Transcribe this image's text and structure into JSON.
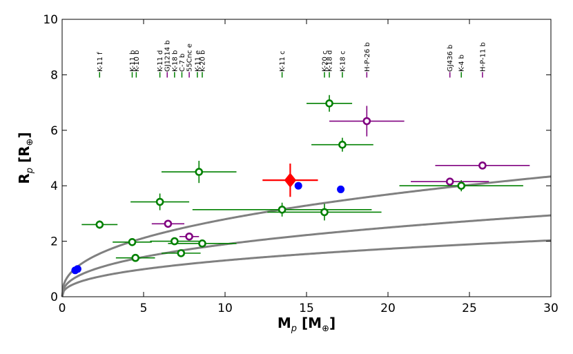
{
  "chart_data": {
    "type": "scatter",
    "title": "",
    "xlabel": {
      "main": "M",
      "sub": "p",
      "unit": " [M",
      "unit_sub": "⊕",
      "close": "]"
    },
    "ylabel": {
      "main": "R",
      "sub": "p",
      "unit": " [R",
      "unit_sub": "⊕",
      "close": "]"
    },
    "xlim": [
      0,
      30
    ],
    "ylim": [
      0,
      10
    ],
    "xticks": [
      0,
      5,
      10,
      15,
      20,
      25,
      30
    ],
    "yticks": [
      0,
      2,
      4,
      6,
      8,
      10
    ],
    "grid": false,
    "colors": {
      "green": "#008000",
      "purple": "#800080",
      "blue": "#0000ff",
      "red": "#ff0000",
      "gray": "#808080"
    },
    "series": [
      {
        "name": "green",
        "marker": "open-circle",
        "points": [
          {
            "x": 2.3,
            "y": 2.6,
            "xerr": 1.1,
            "yerr": 0.15
          },
          {
            "x": 4.3,
            "y": 1.97,
            "xerr": 1.2,
            "yerr": 0.08
          },
          {
            "x": 4.5,
            "y": 1.4,
            "xerr": 1.2,
            "yerr": 0.1
          },
          {
            "x": 6.0,
            "y": 3.42,
            "xerr": 1.8,
            "yerr": 0.3
          },
          {
            "x": 6.9,
            "y": 2.0,
            "xerr": 1.5,
            "yerr": 0.1
          },
          {
            "x": 7.3,
            "y": 1.57,
            "xerr": 1.2,
            "yerr": 0.1
          },
          {
            "x": 8.4,
            "y": 4.5,
            "xerr": 2.3,
            "yerr": 0.4
          },
          {
            "x": 8.6,
            "y": 1.92,
            "xerr": 2.1,
            "yerr": 0.08
          },
          {
            "x": 13.5,
            "y": 3.14,
            "xerr": 5.5,
            "yerr": 0.25
          },
          {
            "x": 16.1,
            "y": 3.05,
            "xerr": 3.5,
            "yerr": 0.3
          },
          {
            "x": 16.4,
            "y": 6.97,
            "xerr": 1.4,
            "yerr": 0.3
          },
          {
            "x": 17.2,
            "y": 5.48,
            "xerr": 1.9,
            "yerr": 0.25
          },
          {
            "x": 24.5,
            "y": 4.0,
            "xerr": 3.8,
            "yerr": 0.2
          }
        ]
      },
      {
        "name": "purple",
        "marker": "open-circle",
        "points": [
          {
            "x": 6.5,
            "y": 2.63,
            "xerr": 1.0,
            "yerr": 0.05
          },
          {
            "x": 7.8,
            "y": 2.17,
            "xerr": 0.6,
            "yerr": 0.05
          },
          {
            "x": 18.7,
            "y": 6.33,
            "xerr": 2.3,
            "yerr": 0.55
          },
          {
            "x": 23.8,
            "y": 4.15,
            "xerr": 2.4,
            "yerr": 0.1
          },
          {
            "x": 25.8,
            "y": 4.73,
            "xerr": 2.9,
            "yerr": 0.1
          }
        ]
      },
      {
        "name": "blue",
        "marker": "filled-circle",
        "points": [
          {
            "x": 0.8,
            "y": 0.95
          },
          {
            "x": 0.95,
            "y": 1.0
          },
          {
            "x": 14.5,
            "y": 4.0
          },
          {
            "x": 17.1,
            "y": 3.87
          }
        ]
      },
      {
        "name": "red",
        "marker": "diamond",
        "points": [
          {
            "x": 14.0,
            "y": 4.2,
            "xerr": 1.7,
            "yerr": 0.6
          }
        ]
      }
    ],
    "curves": [
      {
        "name": "curve-1",
        "coef": 1.112
      },
      {
        "name": "curve-2",
        "coef": 0.7522
      },
      {
        "name": "curve-3",
        "coef": 0.5209
      }
    ],
    "annotations": [
      {
        "text": "K-11 f",
        "x": 2.3,
        "color": "green"
      },
      {
        "text": "K-11 b",
        "x": 4.3,
        "color": "green"
      },
      {
        "text": "K-10 b",
        "x": 4.55,
        "color": "green"
      },
      {
        "text": "K-11 d",
        "x": 6.0,
        "color": "green"
      },
      {
        "text": "GJ1214 b",
        "x": 6.45,
        "color": "purple"
      },
      {
        "text": "K-18 b",
        "x": 6.9,
        "color": "green"
      },
      {
        "text": "C-7 b",
        "x": 7.35,
        "color": "green"
      },
      {
        "text": "55Cnc e",
        "x": 7.8,
        "color": "purple"
      },
      {
        "text": "K-11 e",
        "x": 8.3,
        "color": "green"
      },
      {
        "text": "K-20 b",
        "x": 8.6,
        "color": "green"
      },
      {
        "text": "K-11 c",
        "x": 13.5,
        "color": "green"
      },
      {
        "text": "K-20 c",
        "x": 16.1,
        "color": "green"
      },
      {
        "text": "K-18 d",
        "x": 16.4,
        "color": "green"
      },
      {
        "text": "K-18 c",
        "x": 17.2,
        "color": "green"
      },
      {
        "text": "H-P-26 b",
        "x": 18.7,
        "color": "purple"
      },
      {
        "text": "GJ436 b",
        "x": 23.8,
        "color": "purple"
      },
      {
        "text": "K-4 b",
        "x": 24.5,
        "color": "green"
      },
      {
        "text": "H-P-11 b",
        "x": 25.8,
        "color": "purple"
      }
    ]
  }
}
